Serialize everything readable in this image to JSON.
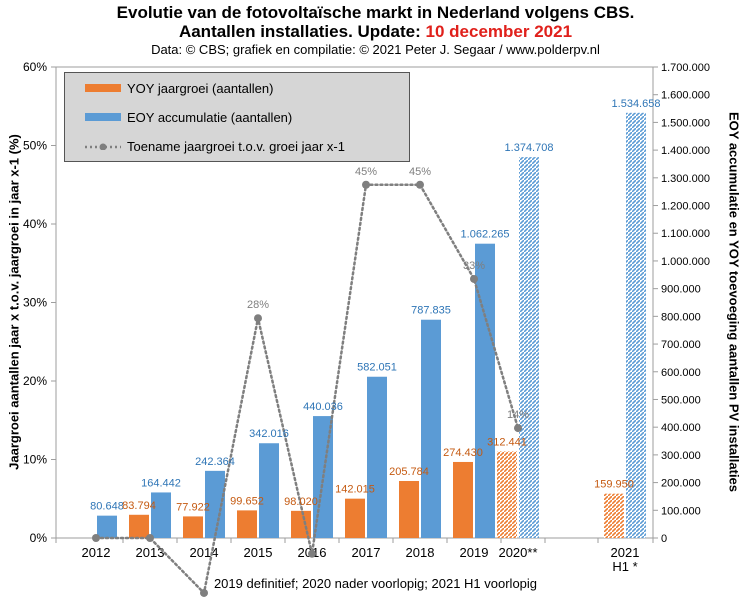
{
  "title": {
    "line1": "Evolutie van de fotovoltaïsche markt in Nederland volgens CBS.",
    "line2_prefix": "Aantallen installaties. Update:",
    "line2_date": "10 december 2021"
  },
  "subtitle": "Data: © CBS; grafiek en compilatie: © 2021 Peter J. Segaar / www.polderpv.nl",
  "footer": "2019 definitief; 2020 nader voorlopig; 2021 H1 voorlopig",
  "legend": {
    "yoy": "YOY jaargroei (aantallen)",
    "eoy": "EOY accumulatie (aantallen)",
    "growth": "Toename jaargroei t.o.v. groei jaar x-1"
  },
  "colors": {
    "yoy": "#ed7d31",
    "eoy": "#5b9bd5",
    "line": "#7f7f7f",
    "title_red": "#e0201b"
  },
  "chart_data": {
    "type": "bar",
    "categories": [
      "2012",
      "2013",
      "2014",
      "2015",
      "2016",
      "2017",
      "2018",
      "2019",
      "2020**",
      "2021 H1 *"
    ],
    "series": [
      {
        "name": "YOY jaargroei (aantallen)",
        "axis": "right",
        "values": [
          null,
          83794,
          77922,
          99652,
          98020,
          142015,
          205784,
          274430,
          312441,
          159950
        ],
        "labels": [
          "",
          "83.794",
          "77.922",
          "99.652",
          "98.020",
          "142.015",
          "205.784",
          "274.430",
          "312.441",
          "159.950"
        ]
      },
      {
        "name": "EOY accumulatie (aantallen)",
        "axis": "right",
        "values": [
          80648,
          164442,
          242364,
          342016,
          440036,
          582051,
          787835,
          1062265,
          1374708,
          1534658
        ],
        "labels": [
          "80.648",
          "164.442",
          "242.364",
          "342.016",
          "440.036",
          "582.051",
          "787.835",
          "1.062.265",
          "1.374.708",
          "1.534.658"
        ]
      },
      {
        "name": "Toename jaargroei t.o.v. groei jaar x-1",
        "axis": "left",
        "type": "line",
        "values": [
          0,
          0,
          -7,
          28,
          -2,
          45,
          45,
          33,
          14,
          null
        ],
        "labels": [
          "",
          "",
          "",
          "28%",
          "",
          "45%",
          "45%",
          "33%",
          "14%",
          ""
        ]
      }
    ],
    "hatched_categories": [
      "2020**",
      "2021 H1 *"
    ],
    "left_axis": {
      "label": "Jaargroei aantallen jaar x t.o.v. jaargroei in jaar x-1 (%)",
      "ylim": [
        0,
        60
      ],
      "ticks": [
        "0%",
        "10%",
        "20%",
        "30%",
        "40%",
        "50%",
        "60%"
      ]
    },
    "right_axis": {
      "label": "EOY accumulatie en YOY toevoeging aantallen PV installaties",
      "ylim": [
        0,
        1700000
      ],
      "ticks": [
        "0",
        "100.000",
        "200.000",
        "300.000",
        "400.000",
        "500.000",
        "600.000",
        "700.000",
        "800.000",
        "900.000",
        "1.000.000",
        "1.100.000",
        "1.200.000",
        "1.300.000",
        "1.400.000",
        "1.500.000",
        "1.600.000",
        "1.700.000"
      ]
    },
    "x_tick_labels": [
      [
        "2012"
      ],
      [
        "2013"
      ],
      [
        "2014"
      ],
      [
        "2015"
      ],
      [
        "2016"
      ],
      [
        "2017"
      ],
      [
        "2018"
      ],
      [
        "2019"
      ],
      [
        "2020**"
      ],
      [
        "2021",
        "H1 *"
      ]
    ],
    "grid": false,
    "legend_position": "top-left"
  }
}
